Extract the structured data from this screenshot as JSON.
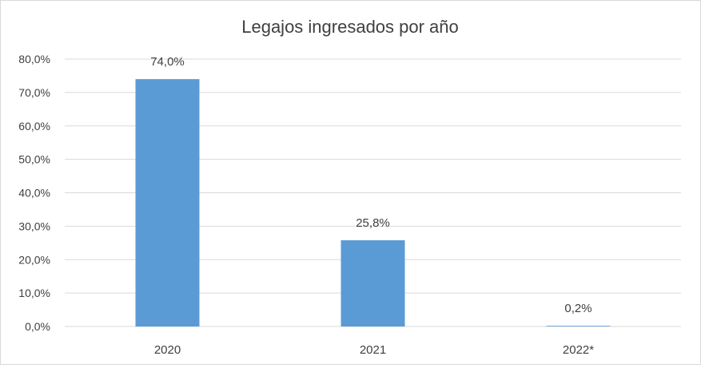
{
  "chart_data": {
    "type": "bar",
    "title": "Legajos ingresados por año",
    "categories": [
      "2020",
      "2021",
      "2022*"
    ],
    "values": [
      74.0,
      25.8,
      0.2
    ],
    "data_labels": [
      "74,0%",
      "25,8%",
      "0,2%"
    ],
    "ylim": [
      0,
      80
    ],
    "y_ticks": [
      0,
      10,
      20,
      30,
      40,
      50,
      60,
      70,
      80
    ],
    "y_tick_labels": [
      "0,0%",
      "10,0%",
      "20,0%",
      "30,0%",
      "40,0%",
      "50,0%",
      "60,0%",
      "70,0%",
      "80,0%"
    ],
    "grid": true,
    "legend": "none",
    "colors": {
      "bar": "#5b9bd5",
      "grid": "#d9d9d9",
      "text": "#404040",
      "title": "#404040"
    }
  }
}
